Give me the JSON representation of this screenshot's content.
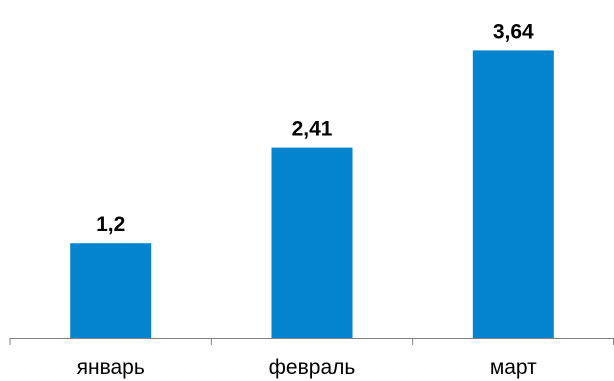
{
  "chart_data": {
    "type": "bar",
    "categories": [
      "январь",
      "февраль",
      "март"
    ],
    "values": [
      1.2,
      2.41,
      3.64
    ],
    "data_labels": [
      "1,2",
      "2,41",
      "3,64"
    ],
    "title": "",
    "xlabel": "",
    "ylabel": "",
    "ylim": [
      0,
      4
    ],
    "grid": false,
    "legend": "none",
    "colors": {
      "bar": "#0483CF",
      "axis": "#808080"
    }
  }
}
